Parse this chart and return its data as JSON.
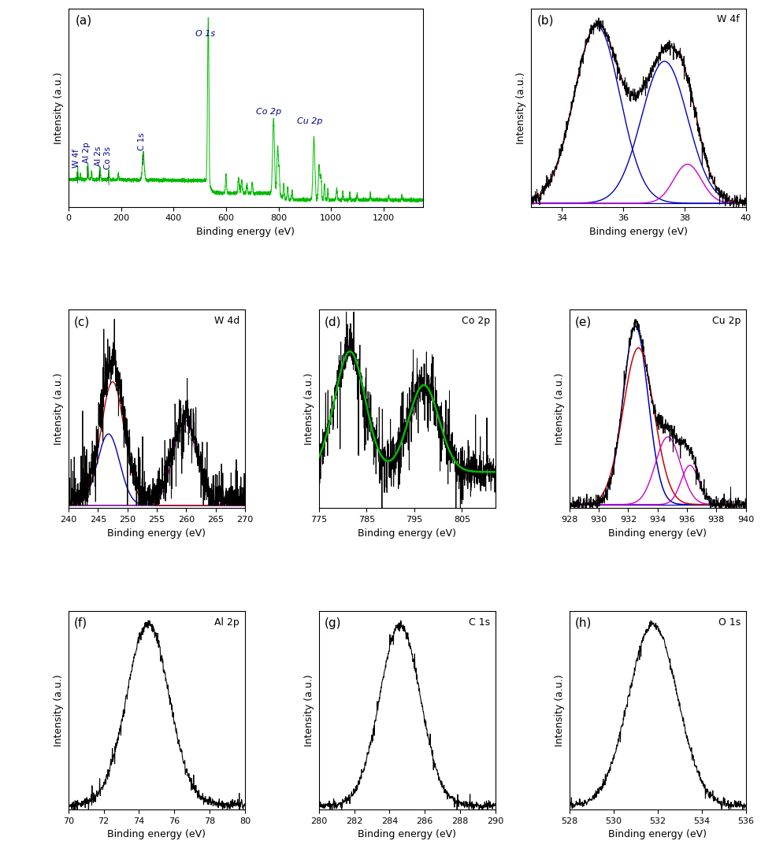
{
  "fig_width": 9.66,
  "fig_height": 10.82,
  "bg_color": "white",
  "panels": {
    "a": {
      "label": "(a)",
      "xlabel": "Binding energy (eV)",
      "ylabel": "Intensity (a.u.)",
      "xlim": [
        0,
        1350
      ],
      "xticks": [
        0,
        200,
        400,
        600,
        800,
        1000,
        1200
      ]
    },
    "b": {
      "label": "(b)",
      "title": "W 4f",
      "xlabel": "Binding energy (eV)",
      "ylabel": "Intensity (a.u.)",
      "xlim": [
        33,
        40
      ],
      "xticks": [
        34,
        36,
        38,
        40
      ]
    },
    "c": {
      "label": "(c)",
      "title": "W 4d",
      "xlabel": "Binding energy (eV)",
      "ylabel": "Intensity (a.u.)",
      "xlim": [
        240,
        270
      ],
      "xticks": [
        240,
        245,
        250,
        255,
        260,
        265,
        270
      ]
    },
    "d": {
      "label": "(d)",
      "title": "Co 2p",
      "xlabel": "Binding energy (eV)",
      "ylabel": "Intensity (a.u.)",
      "xlim": [
        775,
        812
      ],
      "xticks": [
        775,
        785,
        795,
        805
      ]
    },
    "e": {
      "label": "(e)",
      "title": "Cu 2p",
      "xlabel": "Binding energy (eV)",
      "ylabel": "Intensity (a.u.)",
      "xlim": [
        928,
        940
      ],
      "xticks": [
        928,
        930,
        932,
        934,
        936,
        938,
        940
      ]
    },
    "f": {
      "label": "(f)",
      "title": "Al 2p",
      "xlabel": "Binding energy (eV)",
      "ylabel": "Intensity (a.u.)",
      "xlim": [
        70,
        80
      ],
      "xticks": [
        70,
        72,
        74,
        76,
        78,
        80
      ]
    },
    "g": {
      "label": "(g)",
      "title": "C 1s",
      "xlabel": "Binding energy (eV)",
      "ylabel": "Intensity (a.u.)",
      "xlim": [
        280,
        290
      ],
      "xticks": [
        280,
        282,
        284,
        286,
        288,
        290
      ]
    },
    "h": {
      "label": "(h)",
      "title": "O 1s",
      "xlabel": "Binding energy (eV)",
      "ylabel": "Intensity (a.u.)",
      "xlim": [
        528,
        536
      ],
      "xticks": [
        528,
        530,
        532,
        534,
        536
      ]
    }
  },
  "colors": {
    "black": "#000000",
    "red": "#cc0000",
    "blue": "#0000bb",
    "magenta": "#cc00cc",
    "green": "#00bb00",
    "darkblue": "#00008B"
  }
}
